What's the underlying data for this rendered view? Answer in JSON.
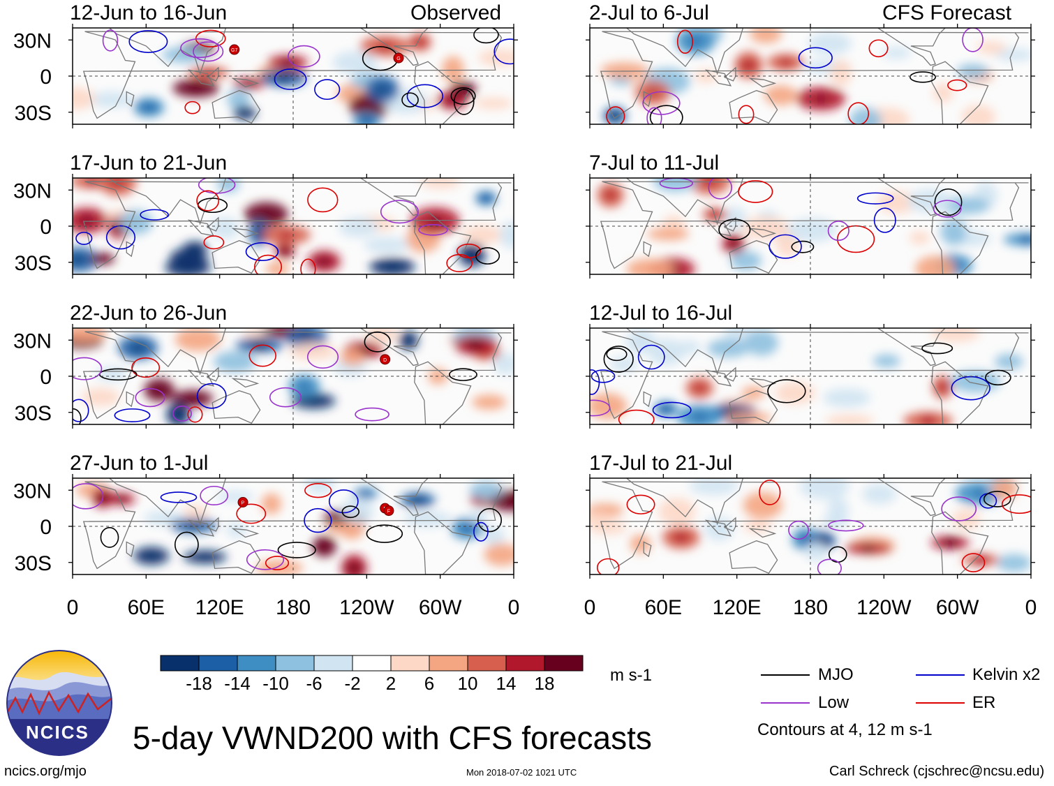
{
  "colors": {
    "scale": [
      "#08306b",
      "#1d5fa6",
      "#3e8ec4",
      "#8ec0df",
      "#d0e4f2",
      "#ffffff",
      "#fdd8c6",
      "#f4a582",
      "#d6604d",
      "#b2182b",
      "#67001f"
    ],
    "mjo": "#000000",
    "kelvin": "#0000cc",
    "low": "#9933cc",
    "er": "#dd0000",
    "map_border": "#777777",
    "land": "#dddddd",
    "storm": "#cc0000"
  },
  "chart_data": {
    "type": "heatmap",
    "title": "5-day VWND200 with CFS forecasts",
    "variable": "VWND200",
    "units": "m s-1",
    "xlabel": "",
    "ylabel": "",
    "x_ticks": [
      "0",
      "60E",
      "120E",
      "180",
      "120W",
      "60W",
      "0"
    ],
    "y_ticks": [
      "30N",
      "0",
      "30S"
    ],
    "xlim": [
      0,
      360
    ],
    "ylim": [
      -40,
      40
    ],
    "color_levels": [
      "-18",
      "-14",
      "-10",
      "-6",
      "-2",
      "2",
      "6",
      "10",
      "14",
      "18"
    ],
    "column_headers": {
      "left": "Observed",
      "right": "CFS Forecast"
    },
    "panels": [
      {
        "period": "12-Jun to 16-Jun",
        "column": "left",
        "label": "Observed",
        "storms": [
          {
            "lon": 132,
            "lat": 22,
            "id": "G7"
          },
          {
            "lon": 266,
            "lat": 15,
            "id": "G"
          }
        ]
      },
      {
        "period": "17-Jun to 21-Jun",
        "column": "left"
      },
      {
        "period": "22-Jun to 26-Jun",
        "column": "left",
        "storms": [
          {
            "lon": 255,
            "lat": 14,
            "id": "D"
          }
        ]
      },
      {
        "period": "27-Jun to 1-Jul",
        "column": "left",
        "storms": [
          {
            "lon": 139,
            "lat": 20,
            "id": "P"
          },
          {
            "lon": 255,
            "lat": 15,
            "id": "E"
          },
          {
            "lon": 258,
            "lat": 13,
            "id": "F"
          }
        ]
      },
      {
        "period": "2-Jul to 6-Jul",
        "column": "right",
        "label": "CFS Forecast"
      },
      {
        "period": "7-Jul to 11-Jul",
        "column": "right"
      },
      {
        "period": "12-Jul to 16-Jul",
        "column": "right"
      },
      {
        "period": "17-Jul to 21-Jul",
        "column": "right"
      }
    ],
    "legend": {
      "items": [
        {
          "name": "MJO",
          "color": "#000000"
        },
        {
          "name": "Kelvin x2",
          "color": "#0000cc"
        },
        {
          "name": "Low",
          "color": "#9933cc"
        },
        {
          "name": "ER",
          "color": "#dd0000"
        }
      ],
      "note": "Contours at 4, 12 m s-1"
    }
  },
  "footer": {
    "logo_text": "NCICS",
    "url": "ncics.org/mjo",
    "timestamp": "Mon 2018-07-02 1021 UTC",
    "credit": "Carl Schreck (cjschrec@ncsu.edu)"
  }
}
